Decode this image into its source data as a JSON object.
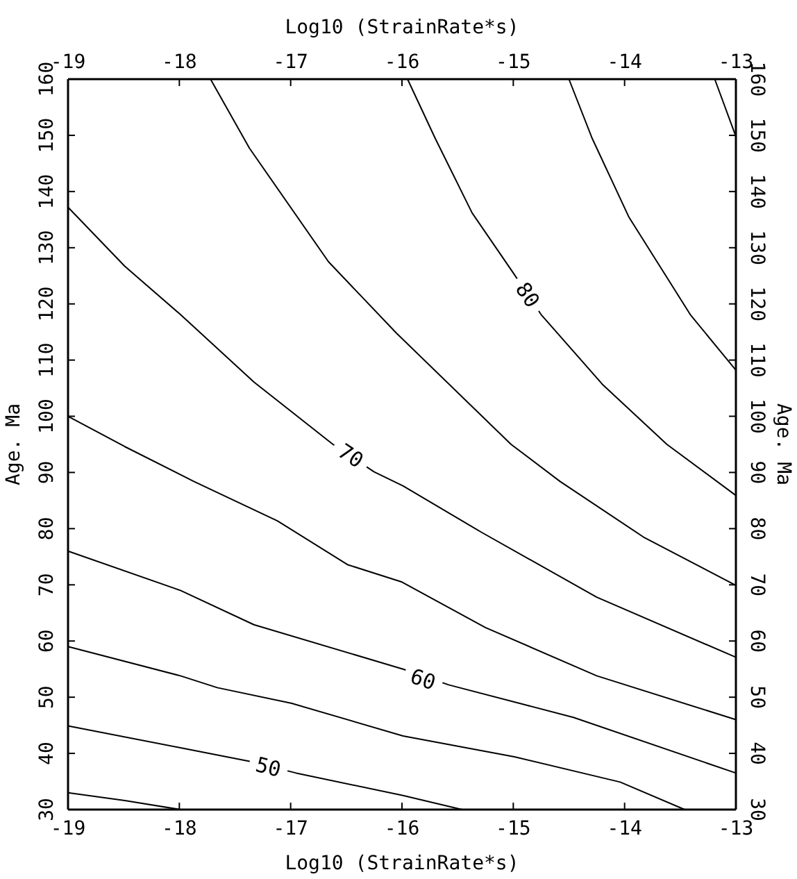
{
  "chart_data": {
    "type": "line",
    "xlabel": "Log10 (StrainRate*s)",
    "x2label": "Log10 (StrainRate*s)",
    "ylabel": "Age. Ma",
    "y2label": "Age. Ma",
    "xlim": [
      -19,
      -13
    ],
    "xticks": [
      -19,
      -18,
      -17,
      -16,
      -15,
      -14,
      -13
    ],
    "x2lim": [
      -19,
      -13
    ],
    "x2ticks": [
      -19,
      -18,
      -17,
      -16,
      -15,
      -14,
      -13
    ],
    "ylim": [
      30,
      160
    ],
    "yticks": [
      30,
      40,
      50,
      60,
      70,
      80,
      90,
      100,
      110,
      120,
      130,
      140,
      150,
      160
    ],
    "y2lim": [
      30,
      160
    ],
    "y2ticks": [
      30,
      40,
      50,
      60,
      70,
      80,
      90,
      100,
      110,
      120,
      130,
      140,
      150,
      160
    ],
    "grid": false,
    "line_style": "solid",
    "marker": "none",
    "series": [
      {
        "color": "#000000",
        "x": [
          -19,
          -18.49,
          -17.99
        ],
        "values": [
          33.0,
          31.6,
          30
        ]
      },
      {
        "color": "#000000",
        "x": [
          -19,
          -17.99,
          -17.37,
          -16.95,
          -15.99,
          -15.46
        ],
        "values": [
          44.9,
          41.0,
          38.6,
          36.5,
          32.5,
          30
        ]
      },
      {
        "color": "#000000",
        "x": [
          -19,
          -17.99,
          -17.66,
          -16.99,
          -15.99,
          -14.99,
          -14.04,
          -13.46
        ],
        "values": [
          59.0,
          53.8,
          51.7,
          48.9,
          43.1,
          39.4,
          34.9,
          30
        ]
      },
      {
        "color": "#000000",
        "x": [
          -19,
          -17.99,
          -17.33,
          -15.99,
          -15.58,
          -14.46,
          -13
        ],
        "values": [
          76.0,
          69.0,
          62.9,
          55.0,
          52.2,
          46.4,
          36.5
        ]
      },
      {
        "color": "#000000",
        "x": [
          -19,
          -18.49,
          -17.87,
          -17.12,
          -16.49,
          -16.0,
          -15.25,
          -14.25,
          -13
        ],
        "values": [
          100.0,
          94.6,
          88.4,
          81.4,
          73.6,
          70.5,
          62.4,
          53.8,
          46.0
        ]
      },
      {
        "color": "#000000",
        "x": [
          -19,
          -18.49,
          -17.99,
          -17.33,
          -16.62,
          -16.25,
          -15.99,
          -15.29,
          -14.25,
          -13
        ],
        "values": [
          137.2,
          126.7,
          118.1,
          106.1,
          95.0,
          90.1,
          87.6,
          79.4,
          67.8,
          57.1
        ]
      },
      {
        "color": "#000000",
        "x": [
          -17.72,
          -17.37,
          -16.66,
          -16.05,
          -15.02,
          -14.58,
          -13.83,
          -13
        ],
        "values": [
          160,
          147.7,
          127.5,
          114.8,
          95.0,
          88.4,
          78.5,
          69.9
        ]
      },
      {
        "color": "#000000",
        "x": [
          -15.95,
          -15.7,
          -15.37,
          -15.0,
          -14.75,
          -14.2,
          -13.62,
          -13
        ],
        "values": [
          160,
          149.4,
          136.2,
          125.5,
          118.1,
          105.7,
          95.0,
          85.9
        ]
      },
      {
        "color": "#000000",
        "x": [
          -14.5,
          -14.29,
          -13.96,
          -13.41,
          -13
        ],
        "values": [
          160,
          149.4,
          135.4,
          118.1,
          108.2
        ]
      },
      {
        "color": "#000000",
        "x": [
          -13.19,
          -13
        ],
        "values": [
          160,
          149.8
        ]
      }
    ],
    "annotations": [
      {
        "text": "50",
        "x": -17.2,
        "y": 37.6
      },
      {
        "text": "60",
        "x": -15.81,
        "y": 53.2
      },
      {
        "text": "70",
        "x": -16.46,
        "y": 93.0
      },
      {
        "text": "80",
        "x": -14.87,
        "y": 121.6
      }
    ]
  }
}
